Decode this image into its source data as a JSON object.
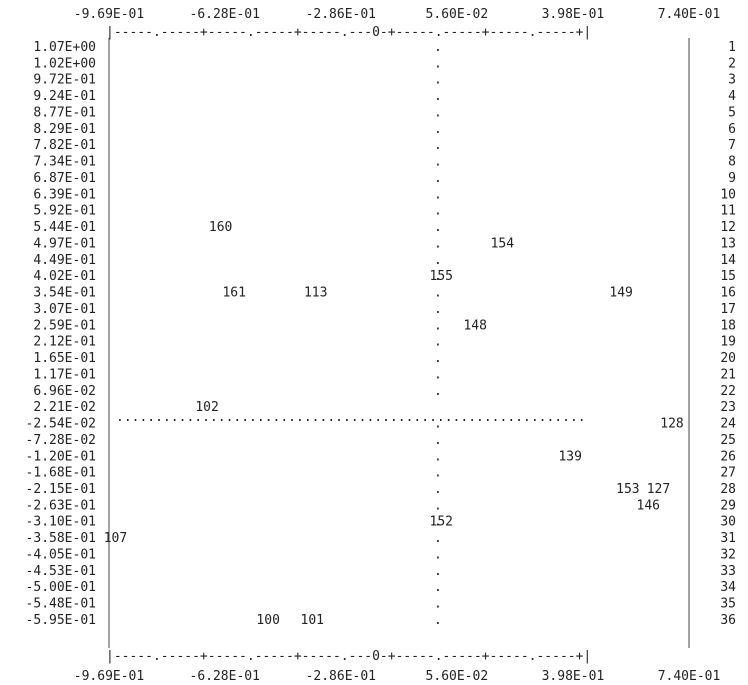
{
  "chart_data": {
    "type": "scatter",
    "x_ticks": [
      "-9.69E-01",
      "-6.28E-01",
      "-2.86E-01",
      "5.60E-02",
      "3.98E-01",
      "7.40E-01"
    ],
    "x_tick_values": [
      -0.969,
      -0.628,
      -0.286,
      0.056,
      0.398,
      0.74
    ],
    "xlim": [
      -0.969,
      0.74
    ],
    "row_labels": [
      "1.07E+00",
      "1.02E+00",
      "9.72E-01",
      "9.24E-01",
      "8.77E-01",
      "8.29E-01",
      "7.82E-01",
      "7.34E-01",
      "6.87E-01",
      "6.39E-01",
      "5.92E-01",
      "5.44E-01",
      "4.97E-01",
      "4.49E-01",
      "4.02E-01",
      "3.54E-01",
      "3.07E-01",
      "2.59E-01",
      "2.12E-01",
      "1.65E-01",
      "1.17E-01",
      "6.96E-02",
      "2.21E-02",
      "-2.54E-02",
      "-7.28E-02",
      "-1.20E-01",
      "-1.68E-01",
      "-2.15E-01",
      "-2.63E-01",
      "-3.10E-01",
      "-3.58E-01",
      "-4.05E-01",
      "-4.53E-01",
      "-5.00E-01",
      "-5.48E-01",
      "-5.95E-01"
    ],
    "row_numbers": [
      "1",
      "2",
      "3",
      "4",
      "5",
      "6",
      "7",
      "8",
      "9",
      "10",
      "11",
      "12",
      "13",
      "14",
      "15",
      "16",
      "17",
      "18",
      "19",
      "20",
      "21",
      "22",
      "23",
      "24",
      "25",
      "26",
      "27",
      "28",
      "29",
      "30",
      "31",
      "32",
      "33",
      "34",
      "35",
      "36"
    ],
    "ruler_top": "|-----.-----+-----.-----+-----.---0-+-----.-----+-----.-----+|",
    "ruler_bottom": "|-----.-----+-----.-----+-----.---0-+-----.-----+-----.-----+|",
    "zero_marker": ".",
    "zero_line": "............................................................",
    "points": [
      {
        "label": "160",
        "x": -0.64,
        "row": 12,
        "color": "#3d9ad6"
      },
      {
        "label": "154",
        "x": 0.19,
        "row": 13,
        "color": "#2e8b2e"
      },
      {
        "label": "155",
        "x": 0.01,
        "row": 15,
        "color": "#2e8b2e"
      },
      {
        "label": "161",
        "x": -0.6,
        "row": 16,
        "color": "#3d9ad6"
      },
      {
        "label": "113",
        "x": -0.36,
        "row": 16,
        "color": "#9a1fa6"
      },
      {
        "label": "149",
        "x": 0.54,
        "row": 16,
        "color": "#e02020"
      },
      {
        "label": "148",
        "x": 0.11,
        "row": 18,
        "color": "#2e8b2e"
      },
      {
        "label": "102",
        "x": -0.68,
        "row": 23,
        "color": "#3d9ad6"
      },
      {
        "label": "128",
        "x": 0.69,
        "row": 24,
        "color": "#222222"
      },
      {
        "label": "139",
        "x": 0.39,
        "row": 26,
        "color": "#e02020"
      },
      {
        "label": "153",
        "x": 0.56,
        "row": 28,
        "color": "#222222"
      },
      {
        "label": "127",
        "x": 0.65,
        "row": 28,
        "color": "#222222"
      },
      {
        "label": "146",
        "x": 0.62,
        "row": 29,
        "color": "#222222"
      },
      {
        "label": "152",
        "x": 0.01,
        "row": 30,
        "color": "#2e8b2e"
      },
      {
        "label": "107",
        "x": -0.95,
        "row": 31,
        "color": "#3d9ad6"
      },
      {
        "label": "100",
        "x": -0.5,
        "row": 36,
        "color": "#1a1ad6"
      },
      {
        "label": "101",
        "x": -0.37,
        "row": 36,
        "color": "#1a1ad6"
      }
    ]
  }
}
